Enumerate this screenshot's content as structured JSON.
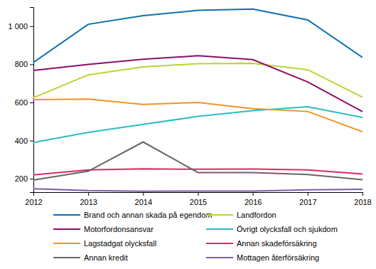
{
  "chart_data": {
    "type": "line",
    "x": [
      2012,
      2013,
      2014,
      2015,
      2016,
      2017,
      2018
    ],
    "xlim": [
      2012,
      2018
    ],
    "xticks": [
      2012,
      2013,
      2014,
      2015,
      2016,
      2017,
      2018
    ],
    "ylim": [
      130,
      1100
    ],
    "yticks": [
      200,
      400,
      600,
      800,
      {
        "value": 1000,
        "label": "1 000"
      }
    ],
    "grid": false,
    "legend": "bottom",
    "series": [
      {
        "name": "Brand och annan skada på egendom",
        "color": "#0a72ae",
        "values": [
          810,
          1010,
          1055,
          1083,
          1090,
          1033,
          836
        ]
      },
      {
        "name": "Landfordon",
        "color": "#bcd431",
        "values": [
          625,
          745,
          787,
          803,
          805,
          772,
          628
        ]
      },
      {
        "name": "Motorfordonsansvar",
        "color": "#8e0d6b",
        "values": [
          768,
          800,
          827,
          845,
          825,
          708,
          552
        ]
      },
      {
        "name": "Övrigt olycksfall och sjukdom",
        "color": "#2bbcc2",
        "values": [
          390,
          443,
          485,
          527,
          557,
          578,
          522
        ]
      },
      {
        "name": "Lagstadgat olycksfall",
        "color": "#f39325",
        "values": [
          615,
          618,
          590,
          600,
          567,
          553,
          447
        ]
      },
      {
        "name": "Annan skadeförsäkring",
        "color": "#d72c5c",
        "values": [
          220,
          247,
          252,
          250,
          251,
          247,
          225
        ]
      },
      {
        "name": "Annan kredit",
        "color": "#666666",
        "values": [
          193,
          240,
          393,
          233,
          233,
          222,
          195
        ]
      },
      {
        "name": "Mottagen återförsäkring",
        "color": "#7a5db0",
        "values": [
          148,
          138,
          135,
          136,
          136,
          142,
          145
        ]
      }
    ]
  }
}
